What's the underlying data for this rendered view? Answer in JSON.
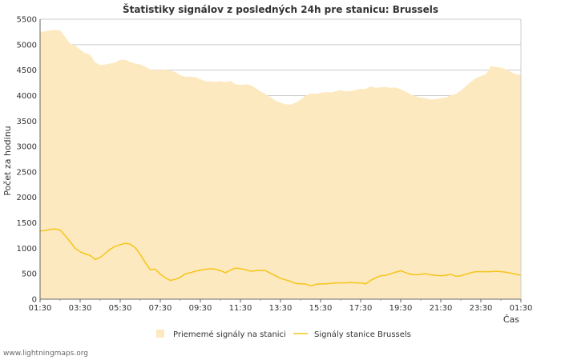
{
  "chart_data": {
    "type": "area",
    "title": "Štatistiky signálov z posledných 24h pre stanicu: Brussels",
    "xlabel": "Čas",
    "ylabel": "Počet za hodinu",
    "ylim": [
      0,
      5500
    ],
    "yticks": [
      0,
      500,
      1000,
      1500,
      2000,
      2500,
      3000,
      3500,
      4000,
      4500,
      5000,
      5500
    ],
    "xlim": [
      0,
      24
    ],
    "x_tick_labels": [
      "01:30",
      "03:30",
      "05:30",
      "07:30",
      "09:30",
      "11:30",
      "13:30",
      "15:30",
      "17:30",
      "19:30",
      "21:30",
      "23:30",
      "01:30"
    ],
    "grid": true,
    "legend_position": "bottom",
    "series": [
      {
        "name": "Priememé signály na stanici",
        "style": "area",
        "color": "#fde9bf",
        "x": [
          0,
          0.25,
          0.5,
          0.75,
          1.0,
          1.25,
          1.5,
          1.75,
          2.0,
          2.25,
          2.5,
          2.75,
          3.0,
          3.25,
          3.5,
          3.75,
          4.0,
          4.25,
          4.5,
          4.75,
          5.0,
          5.25,
          5.5,
          5.75,
          6.0,
          6.25,
          6.5,
          6.75,
          7.0,
          7.25,
          7.5,
          7.75,
          8.0,
          8.25,
          8.5,
          8.75,
          9.0,
          9.25,
          9.5,
          9.75,
          10.0,
          10.25,
          10.5,
          10.75,
          11.0,
          11.25,
          11.5,
          11.75,
          12.0,
          12.25,
          12.5,
          12.75,
          13.0,
          13.25,
          13.5,
          13.75,
          14.0,
          14.25,
          14.5,
          14.75,
          15.0,
          15.25,
          15.5,
          15.75,
          16.0,
          16.25,
          16.5,
          16.75,
          17.0,
          17.25,
          17.5,
          17.75,
          18.0,
          18.25,
          18.5,
          18.75,
          19.0,
          19.25,
          19.5,
          19.75,
          20.0,
          20.25,
          20.5,
          20.75,
          21.0,
          21.25,
          21.5,
          21.75,
          22.0,
          22.25,
          22.5,
          22.75,
          23.0,
          23.25,
          23.5,
          23.75,
          24.0
        ],
        "values": [
          5250,
          5260,
          5280,
          5290,
          5280,
          5150,
          5020,
          4980,
          4900,
          4830,
          4800,
          4650,
          4600,
          4610,
          4630,
          4650,
          4700,
          4700,
          4660,
          4630,
          4610,
          4570,
          4510,
          4500,
          4500,
          4510,
          4490,
          4460,
          4400,
          4370,
          4370,
          4360,
          4320,
          4280,
          4280,
          4270,
          4280,
          4260,
          4290,
          4220,
          4210,
          4220,
          4210,
          4150,
          4080,
          4030,
          3970,
          3900,
          3860,
          3830,
          3820,
          3860,
          3920,
          4000,
          4040,
          4030,
          4050,
          4070,
          4060,
          4080,
          4110,
          4080,
          4090,
          4110,
          4130,
          4130,
          4180,
          4150,
          4160,
          4170,
          4150,
          4160,
          4120,
          4080,
          4020,
          3990,
          3960,
          3950,
          3920,
          3930,
          3950,
          3960,
          4010,
          4030,
          4100,
          4180,
          4270,
          4340,
          4380,
          4420,
          4580,
          4560,
          4550,
          4520,
          4460,
          4420,
          4410
        ]
      },
      {
        "name": "Signály stanice Brussels",
        "style": "line",
        "color": "#f5c518",
        "x": [
          0,
          0.25,
          0.5,
          0.75,
          1.0,
          1.25,
          1.5,
          1.75,
          2.0,
          2.25,
          2.5,
          2.75,
          3.0,
          3.25,
          3.5,
          3.75,
          4.0,
          4.25,
          4.5,
          4.75,
          5.0,
          5.25,
          5.5,
          5.75,
          6.0,
          6.25,
          6.5,
          6.75,
          7.0,
          7.25,
          7.5,
          7.75,
          8.0,
          8.25,
          8.5,
          8.75,
          9.0,
          9.25,
          9.5,
          9.75,
          10.0,
          10.25,
          10.5,
          10.75,
          11.0,
          11.25,
          11.5,
          11.75,
          12.0,
          12.25,
          12.5,
          12.75,
          13.0,
          13.25,
          13.5,
          13.75,
          14.0,
          14.25,
          14.5,
          14.75,
          15.0,
          15.25,
          15.5,
          15.75,
          16.0,
          16.25,
          16.5,
          16.75,
          17.0,
          17.25,
          17.5,
          17.75,
          18.0,
          18.25,
          18.5,
          18.75,
          19.0,
          19.25,
          19.5,
          19.75,
          20.0,
          20.25,
          20.5,
          20.75,
          21.0,
          21.25,
          21.5,
          21.75,
          22.0,
          22.25,
          22.5,
          22.75,
          23.0,
          23.25,
          23.5,
          23.75,
          24.0
        ],
        "values": [
          1340,
          1350,
          1370,
          1380,
          1360,
          1250,
          1130,
          1000,
          930,
          890,
          860,
          780,
          820,
          900,
          980,
          1040,
          1070,
          1100,
          1080,
          1010,
          880,
          720,
          580,
          590,
          490,
          420,
          370,
          390,
          430,
          500,
          520,
          550,
          570,
          590,
          600,
          590,
          560,
          520,
          570,
          610,
          600,
          580,
          550,
          560,
          570,
          560,
          510,
          460,
          410,
          380,
          350,
          310,
          300,
          300,
          260,
          290,
          300,
          300,
          310,
          320,
          320,
          320,
          330,
          320,
          320,
          300,
          370,
          420,
          460,
          470,
          500,
          530,
          560,
          520,
          490,
          480,
          490,
          500,
          480,
          470,
          460,
          470,
          490,
          450,
          460,
          490,
          520,
          540,
          540,
          540,
          540,
          550,
          540,
          530,
          510,
          490,
          470
        ]
      }
    ]
  },
  "footer": {
    "credit": "www.lightningmaps.org"
  }
}
